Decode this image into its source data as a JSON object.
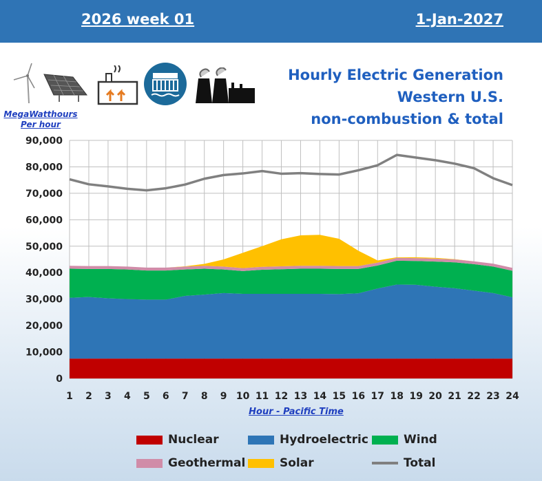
{
  "header": {
    "week": "2026 week 01",
    "date": "1-Jan-2027",
    "bg_color": "#2f74b5"
  },
  "title": {
    "line1": "Hourly Electric Generation",
    "line2": "Western U.S.",
    "line3": "non-combustion & total"
  },
  "units": {
    "line1": "MegaWatthours",
    "line2": "Per hour"
  },
  "icons": [
    "wind-turbine-icon",
    "solar-panel-icon",
    "geothermal-plant-icon",
    "hydro-dam-icon",
    "power-plant-icon"
  ],
  "chart_data": {
    "type": "area",
    "stacked": true,
    "xlabel": "Hour - Pacific Time",
    "ylabel": "",
    "ylim": [
      0,
      90000
    ],
    "yticks": [
      "0",
      "10,000",
      "20,000",
      "30,000",
      "40,000",
      "50,000",
      "60,000",
      "70,000",
      "80,000",
      "90,000"
    ],
    "x": [
      1,
      2,
      3,
      4,
      5,
      6,
      7,
      8,
      9,
      10,
      11,
      12,
      13,
      14,
      15,
      16,
      17,
      18,
      19,
      20,
      21,
      22,
      23,
      24
    ],
    "grid": true,
    "series": [
      {
        "name": "Nuclear",
        "color": "#c00000",
        "values": [
          7500,
          7500,
          7500,
          7500,
          7500,
          7500,
          7500,
          7500,
          7500,
          7500,
          7500,
          7500,
          7500,
          7500,
          7500,
          7500,
          7500,
          7500,
          7500,
          7500,
          7500,
          7500,
          7500,
          7500
        ]
      },
      {
        "name": "Hydroelectric",
        "color": "#2e75b6",
        "values": [
          23000,
          23300,
          22800,
          22500,
          22300,
          22300,
          23700,
          24200,
          24800,
          24500,
          24500,
          24500,
          24500,
          24500,
          24400,
          24700,
          26500,
          28000,
          27900,
          27200,
          26600,
          25700,
          24800,
          23200
        ]
      },
      {
        "name": "Wind",
        "color": "#00b050",
        "values": [
          11000,
          10600,
          11100,
          11200,
          11000,
          11000,
          10000,
          9800,
          8900,
          8600,
          9100,
          9300,
          9500,
          9500,
          9500,
          9200,
          8700,
          9000,
          9000,
          9500,
          9800,
          10000,
          10000,
          10000
        ]
      },
      {
        "name": "Geothermal",
        "color": "#d08ca8",
        "values": [
          1100,
          1100,
          1100,
          1100,
          1100,
          1100,
          1100,
          1100,
          1100,
          1100,
          1100,
          1100,
          1100,
          1100,
          1100,
          1100,
          1100,
          1100,
          1100,
          1100,
          1100,
          1100,
          1100,
          1100
        ]
      },
      {
        "name": "Solar",
        "color": "#ffc000",
        "values": [
          0,
          0,
          0,
          0,
          0,
          0,
          100,
          700,
          2700,
          5800,
          7800,
          10200,
          11500,
          11700,
          10300,
          5800,
          800,
          200,
          300,
          300,
          100,
          0,
          0,
          0
        ]
      }
    ],
    "total": {
      "name": "Total",
      "color": "#808080",
      "values": [
        75300,
        73400,
        72600,
        71700,
        71100,
        71900,
        73300,
        75500,
        76900,
        77500,
        78400,
        77400,
        77600,
        77300,
        77100,
        78700,
        80600,
        84500,
        83500,
        82500,
        81200,
        79500,
        75700,
        73100
      ]
    }
  },
  "legend": [
    {
      "label": "Nuclear",
      "color": "#c00000",
      "kind": "box"
    },
    {
      "label": "Hydroelectric",
      "color": "#2e75b6",
      "kind": "box"
    },
    {
      "label": "Wind",
      "color": "#00b050",
      "kind": "box"
    },
    {
      "label": "Geothermal",
      "color": "#d08ca8",
      "kind": "box"
    },
    {
      "label": "Solar",
      "color": "#ffc000",
      "kind": "box"
    },
    {
      "label": "Total",
      "color": "#808080",
      "kind": "line"
    }
  ]
}
